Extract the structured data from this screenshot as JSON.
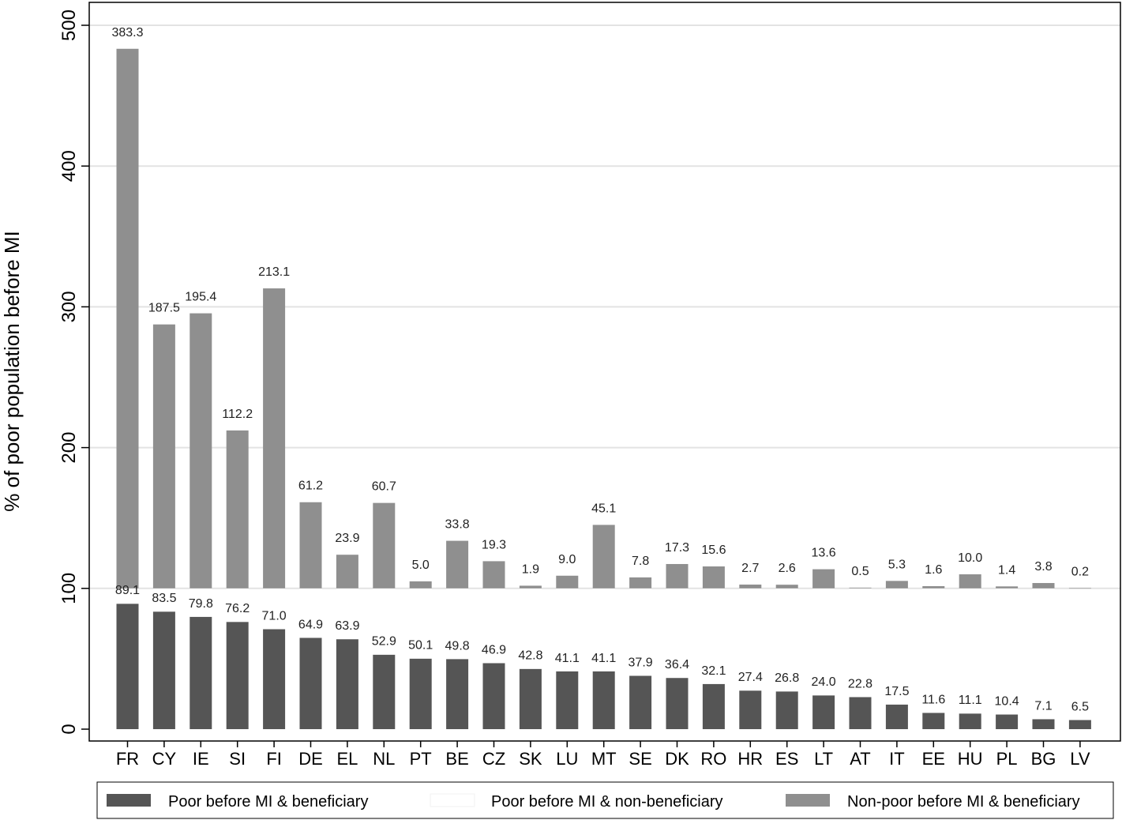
{
  "chart_data": {
    "type": "bar",
    "stacked": true,
    "ylabel": "% of poor population before MI",
    "ylim": [
      0,
      500
    ],
    "yticks": [
      0,
      100,
      200,
      300,
      400,
      500
    ],
    "grid": true,
    "legend_position": "bottom",
    "categories": [
      "FR",
      "CY",
      "IE",
      "SI",
      "FI",
      "DE",
      "EL",
      "NL",
      "PT",
      "BE",
      "CZ",
      "SK",
      "LU",
      "MT",
      "SE",
      "DK",
      "RO",
      "HR",
      "ES",
      "LT",
      "AT",
      "IT",
      "EE",
      "HU",
      "PL",
      "BG",
      "LV"
    ],
    "series": [
      {
        "name": "Poor before MI & beneficiary",
        "color": "#555555",
        "values": [
          89.1,
          83.5,
          79.8,
          76.2,
          71.0,
          64.9,
          63.9,
          52.9,
          50.1,
          49.8,
          46.9,
          42.8,
          41.1,
          41.1,
          37.9,
          36.4,
          32.1,
          27.4,
          26.8,
          24.0,
          22.8,
          17.5,
          11.6,
          11.1,
          10.4,
          7.1,
          6.5
        ],
        "labels": [
          "89.1",
          "83.5",
          "79.8",
          "76.2",
          "71.0",
          "64.9",
          "63.9",
          "52.9",
          "50.1",
          "49.8",
          "46.9",
          "42.8",
          "41.1",
          "41.1",
          "37.9",
          "36.4",
          "32.1",
          "27.4",
          "26.8",
          "24.0",
          "22.8",
          "17.5",
          "11.6",
          "11.1",
          "10.4",
          "7.1",
          "6.5"
        ]
      },
      {
        "name": "Poor before MI & non-beneficiary",
        "color": "#ffffff",
        "values": [
          10.9,
          16.5,
          20.2,
          23.8,
          29.0,
          35.1,
          36.1,
          47.1,
          49.9,
          50.2,
          53.1,
          57.2,
          58.9,
          58.9,
          62.1,
          63.6,
          67.9,
          72.6,
          73.2,
          76.0,
          77.2,
          82.5,
          88.4,
          88.9,
          89.6,
          92.9,
          93.5
        ]
      },
      {
        "name": "Non-poor before MI & beneficiary",
        "color": "#8f8f8f",
        "values": [
          383.3,
          187.5,
          195.4,
          112.2,
          213.1,
          61.2,
          23.9,
          60.7,
          5.0,
          33.8,
          19.3,
          1.9,
          9.0,
          45.1,
          7.8,
          17.3,
          15.6,
          2.7,
          2.6,
          13.6,
          0.5,
          5.3,
          1.6,
          10.0,
          1.4,
          3.8,
          0.2
        ],
        "labels": [
          "383.3",
          "187.5",
          "195.4",
          "112.2",
          "213.1",
          "61.2",
          "23.9",
          "60.7",
          "5.0",
          "33.8",
          "19.3",
          "1.9",
          "9.0",
          "45.1",
          "7.8",
          "17.3",
          "15.6",
          "2.7",
          "2.6",
          "13.6",
          "0.5",
          "5.3",
          "1.6",
          "10.0",
          "1.4",
          "3.8",
          "0.2"
        ]
      }
    ]
  }
}
